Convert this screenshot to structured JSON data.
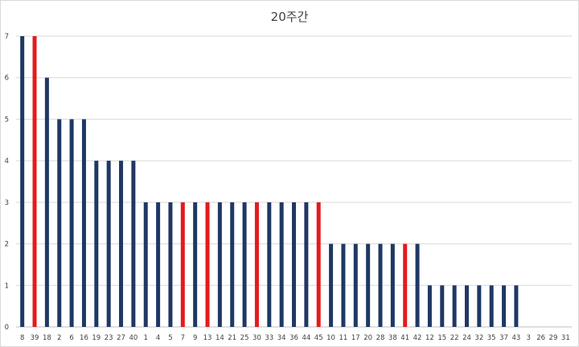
{
  "chart_data": {
    "type": "bar",
    "title": "20주간",
    "xlabel": "",
    "ylabel": "",
    "ylim": [
      0,
      7
    ],
    "yticks": [
      0,
      1,
      2,
      3,
      4,
      5,
      6,
      7
    ],
    "grid": true,
    "legend": "none",
    "categories": [
      "8",
      "39",
      "18",
      "2",
      "6",
      "16",
      "19",
      "23",
      "27",
      "40",
      "1",
      "4",
      "5",
      "7",
      "9",
      "13",
      "14",
      "21",
      "25",
      "30",
      "33",
      "34",
      "36",
      "44",
      "45",
      "10",
      "11",
      "17",
      "20",
      "28",
      "38",
      "41",
      "42",
      "12",
      "15",
      "22",
      "24",
      "32",
      "35",
      "37",
      "43",
      "3",
      "26",
      "29",
      "31"
    ],
    "values": [
      7,
      7,
      6,
      5,
      5,
      5,
      4,
      4,
      4,
      4,
      3,
      3,
      3,
      3,
      3,
      3,
      3,
      3,
      3,
      3,
      3,
      3,
      3,
      3,
      3,
      2,
      2,
      2,
      2,
      2,
      2,
      2,
      2,
      1,
      1,
      1,
      1,
      1,
      1,
      1,
      1,
      0,
      0,
      0,
      0
    ],
    "highlighted": [
      "39",
      "7",
      "13",
      "30",
      "45",
      "41"
    ],
    "colors": {
      "bar": "#1f3864",
      "highlight": "#e41a1c",
      "grid": "#d9d9d9",
      "axis": "#bfbfbf"
    }
  }
}
